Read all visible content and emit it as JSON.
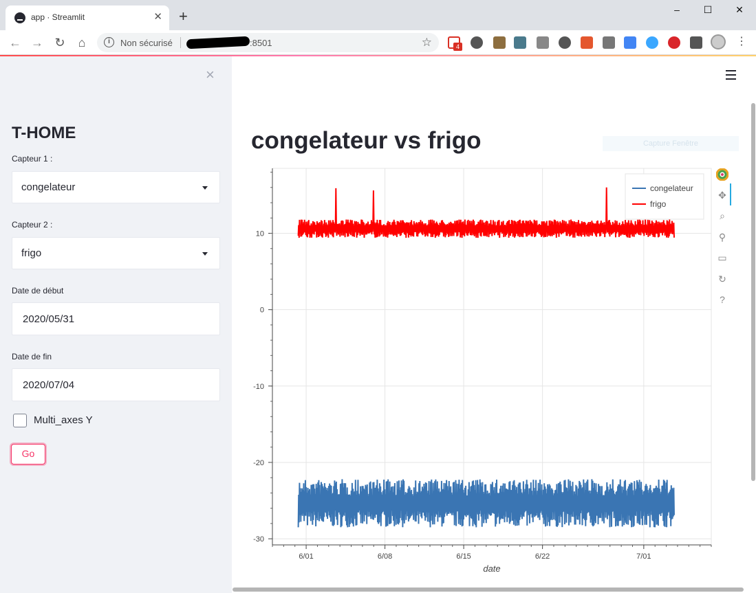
{
  "browser": {
    "tab_title": "app · Streamlit",
    "tab_close": "✕",
    "new_tab": "+",
    "security_label": "Non sécurisé",
    "url_suffix": ":8501",
    "window_controls": [
      "–",
      "☐",
      "✕"
    ],
    "extension_badge": "4"
  },
  "sidebar": {
    "close": "×",
    "title": "T-HOME",
    "capteur1_label": "Capteur 1 :",
    "capteur1_value": "congelateur",
    "capteur2_label": "Capteur 2 :",
    "capteur2_value": "frigo",
    "date_debut_label": "Date de début",
    "date_debut_value": "2020/05/31",
    "date_fin_label": "Date de fin",
    "date_fin_value": "2020/07/04",
    "multi_axes_label": "Multi_axes Y",
    "multi_axes_checked": false,
    "go_label": "Go"
  },
  "main": {
    "title": "congelateur vs frigo",
    "ghost_button": "Capture Fenêtre"
  },
  "chart_data": {
    "type": "line",
    "title": "",
    "xlabel": "date",
    "ylabel": "",
    "x_ticks": [
      "6/01",
      "6/08",
      "6/15",
      "6/22",
      "7/01"
    ],
    "y_ticks": [
      10,
      0,
      -10,
      -20,
      -30
    ],
    "ylim": [
      -30.8,
      18.5
    ],
    "xlim": [
      "2020-05-29",
      "2020-07-07"
    ],
    "grid": true,
    "legend_position": "top-right",
    "series": [
      {
        "name": "congelateur",
        "color": "#3a75b3",
        "band": [
          -28.5,
          -22.2
        ],
        "x_range": [
          "2020-05-31",
          "2020-07-04"
        ]
      },
      {
        "name": "frigo",
        "color": "#ff0000",
        "band": [
          9.4,
          11.8
        ],
        "spikes": [
          15.9,
          15.6,
          16.0
        ],
        "x_range": [
          "2020-05-31",
          "2020-07-04"
        ]
      }
    ]
  }
}
